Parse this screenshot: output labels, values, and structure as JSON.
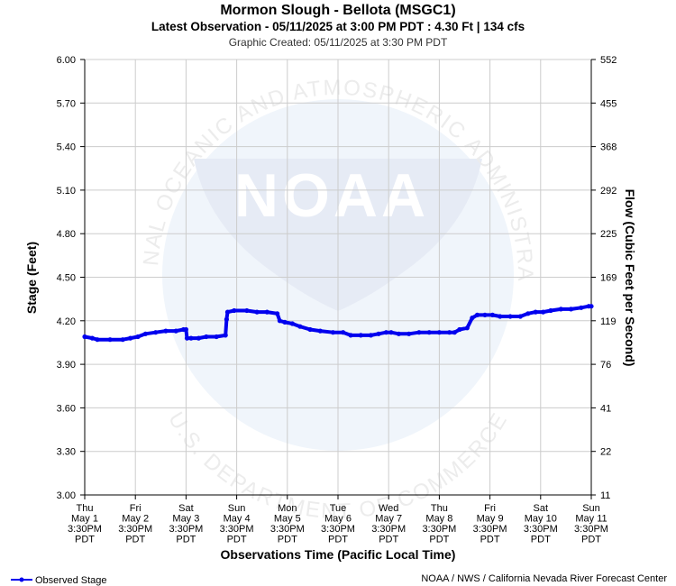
{
  "header": {
    "title": "Mormon Slough - Bellota (MSGC1)",
    "latest": "Latest Observation - 05/11/2025 at 3:00 PM PDT : 4.30 Ft | 134 cfs",
    "created": "Graphic Created: 05/11/2025 at 3:30 PM PDT"
  },
  "footer": {
    "legend_label": "Observed Stage",
    "credit": "NOAA / NWS / California Nevada River Forecast Center"
  },
  "watermark": {
    "logo_text": "NOAA",
    "ring_top": "NATIONAL OCEANIC AND ATMOSPHERIC ADMINISTRATION",
    "ring_bottom": "U.S. DEPARTMENT OF COMMERCE"
  },
  "colors": {
    "series": "#0000ee",
    "grid": "#cccccc",
    "watermark": "#eef4fb"
  },
  "chart_data": {
    "type": "line",
    "title": "Mormon Slough - Bellota (MSGC1)",
    "xlabel": "Observations Time (Pacific Local Time)",
    "ylabel": "Stage (Feet)",
    "ylabel_right": "Flow (Cubic Feet per Second)",
    "ylim": [
      3.0,
      6.0
    ],
    "xlim": [
      0,
      10
    ],
    "y_ticks": [
      "3.00",
      "3.30",
      "3.60",
      "3.90",
      "4.20",
      "4.50",
      "4.80",
      "5.10",
      "5.40",
      "5.70",
      "6.00"
    ],
    "y_right_ticks": [
      "11",
      "22",
      "41",
      "76",
      "119",
      "169",
      "225",
      "292",
      "368",
      "455",
      "552"
    ],
    "x_ticks": [
      {
        "day": "Thu",
        "date": "May 1",
        "time": "3:30PM",
        "tz": "PDT"
      },
      {
        "day": "Fri",
        "date": "May 2",
        "time": "3:30PM",
        "tz": "PDT"
      },
      {
        "day": "Sat",
        "date": "May 3",
        "time": "3:30PM",
        "tz": "PDT"
      },
      {
        "day": "Sun",
        "date": "May 4",
        "time": "3:30PM",
        "tz": "PDT"
      },
      {
        "day": "Mon",
        "date": "May 5",
        "time": "3:30PM",
        "tz": "PDT"
      },
      {
        "day": "Tue",
        "date": "May 6",
        "time": "3:30PM",
        "tz": "PDT"
      },
      {
        "day": "Wed",
        "date": "May 7",
        "time": "3:30PM",
        "tz": "PDT"
      },
      {
        "day": "Thu",
        "date": "May 8",
        "time": "3:30PM",
        "tz": "PDT"
      },
      {
        "day": "Fri",
        "date": "May 9",
        "time": "3:30PM",
        "tz": "PDT"
      },
      {
        "day": "Sat",
        "date": "May 10",
        "time": "3:30PM",
        "tz": "PDT"
      },
      {
        "day": "Sun",
        "date": "May 11",
        "time": "3:30PM",
        "tz": "PDT"
      }
    ],
    "grid": true,
    "legend": "bottom-left",
    "series": [
      {
        "name": "Observed Stage",
        "points": [
          [
            0.0,
            4.09
          ],
          [
            0.15,
            4.08
          ],
          [
            0.25,
            4.07
          ],
          [
            0.5,
            4.07
          ],
          [
            0.75,
            4.07
          ],
          [
            0.9,
            4.08
          ],
          [
            1.05,
            4.09
          ],
          [
            1.2,
            4.11
          ],
          [
            1.4,
            4.12
          ],
          [
            1.6,
            4.13
          ],
          [
            1.8,
            4.13
          ],
          [
            1.95,
            4.14
          ],
          [
            2.0,
            4.14
          ],
          [
            2.02,
            4.08
          ],
          [
            2.1,
            4.08
          ],
          [
            2.25,
            4.08
          ],
          [
            2.4,
            4.09
          ],
          [
            2.6,
            4.09
          ],
          [
            2.78,
            4.1
          ],
          [
            2.8,
            4.21
          ],
          [
            2.82,
            4.26
          ],
          [
            2.95,
            4.27
          ],
          [
            3.2,
            4.27
          ],
          [
            3.4,
            4.26
          ],
          [
            3.6,
            4.26
          ],
          [
            3.8,
            4.25
          ],
          [
            3.85,
            4.2
          ],
          [
            3.95,
            4.19
          ],
          [
            4.1,
            4.18
          ],
          [
            4.25,
            4.16
          ],
          [
            4.45,
            4.14
          ],
          [
            4.65,
            4.13
          ],
          [
            4.9,
            4.12
          ],
          [
            5.1,
            4.12
          ],
          [
            5.25,
            4.1
          ],
          [
            5.45,
            4.1
          ],
          [
            5.65,
            4.1
          ],
          [
            5.8,
            4.11
          ],
          [
            5.95,
            4.12
          ],
          [
            6.05,
            4.12
          ],
          [
            6.2,
            4.11
          ],
          [
            6.4,
            4.11
          ],
          [
            6.6,
            4.12
          ],
          [
            6.8,
            4.12
          ],
          [
            7.0,
            4.12
          ],
          [
            7.2,
            4.12
          ],
          [
            7.3,
            4.12
          ],
          [
            7.4,
            4.14
          ],
          [
            7.55,
            4.15
          ],
          [
            7.65,
            4.22
          ],
          [
            7.75,
            4.24
          ],
          [
            7.9,
            4.24
          ],
          [
            8.05,
            4.24
          ],
          [
            8.2,
            4.23
          ],
          [
            8.4,
            4.23
          ],
          [
            8.6,
            4.23
          ],
          [
            8.75,
            4.25
          ],
          [
            8.9,
            4.26
          ],
          [
            9.05,
            4.26
          ],
          [
            9.2,
            4.27
          ],
          [
            9.4,
            4.28
          ],
          [
            9.6,
            4.28
          ],
          [
            9.8,
            4.29
          ],
          [
            9.95,
            4.3
          ],
          [
            10.0,
            4.3
          ]
        ]
      }
    ]
  }
}
